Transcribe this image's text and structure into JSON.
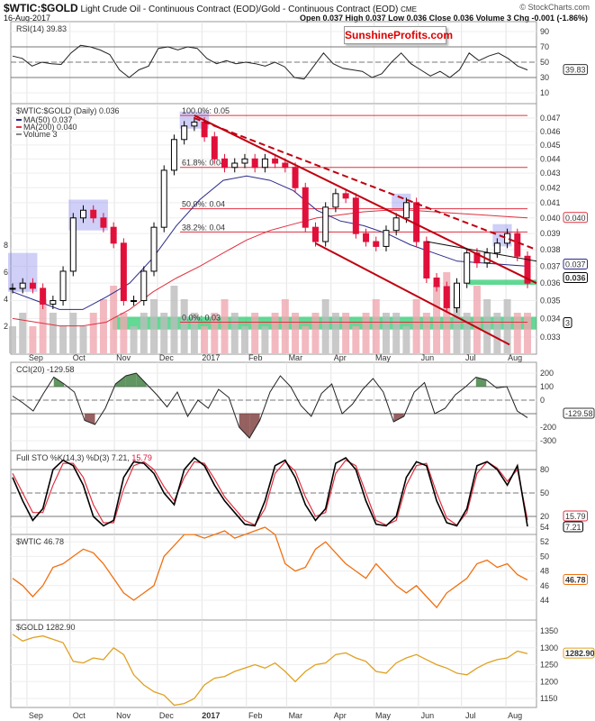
{
  "header": {
    "symbol": "$WTIC:$GOLD",
    "description": "Light Crude Oil - Continuous Contract (EOD)/Gold - Continuous Contract (EOD)",
    "exchange": "CME",
    "date": "16-Aug-2017",
    "copyright": "© StockCharts.com",
    "ohlc": "Open 0.037  High 0.037  Low 0.036  Close 0.036  Volume 3  Chg -0.001 (-1.86%)",
    "watermark": "SunshineProfits.com"
  },
  "colors": {
    "up": "#000000",
    "down": "#e0103a",
    "ma50": "#2a2a8a",
    "ma200": "#e03040",
    "support": "#2ecc71",
    "highlight": "#8888ee",
    "wtic": "#f07010",
    "gold": "#e0a020",
    "fib": "#e03040"
  },
  "chart_data": [
    {
      "panel": "rsi",
      "type": "line",
      "title": "RSI(14) 39.83",
      "last_label": "39.83",
      "ylim": [
        0,
        100
      ],
      "ticks": [
        "90",
        "70",
        "50",
        "30",
        "10"
      ],
      "tick_values": [
        90,
        70,
        50,
        30,
        10
      ],
      "levels": [
        70,
        50,
        30
      ],
      "values": [
        58,
        55,
        45,
        50,
        48,
        47,
        62,
        72,
        70,
        66,
        60,
        40,
        30,
        40,
        45,
        68,
        70,
        66,
        70,
        68,
        55,
        48,
        52,
        48,
        50,
        48,
        45,
        50,
        44,
        30,
        28,
        45,
        62,
        48,
        42,
        40,
        38,
        30,
        35,
        50,
        62,
        48,
        40,
        32,
        38,
        30,
        40,
        62,
        52,
        58,
        62,
        55,
        45,
        39.83
      ]
    },
    {
      "panel": "main",
      "type": "candlestick-close",
      "title": "$WTIC:$GOLD (Daily) 0.036",
      "scale": "log",
      "ylim": [
        0.0325,
        0.0485
      ],
      "ticks": [
        "0.047",
        "0.046",
        "0.045",
        "0.044",
        "0.043",
        "0.042",
        "0.041",
        "0.040",
        "0.039",
        "0.038",
        "0.037",
        "0.036",
        "0.035",
        "0.034",
        "0.033"
      ],
      "tick_values": [
        0.047,
        0.046,
        0.045,
        0.044,
        0.043,
        0.042,
        0.041,
        0.04,
        0.039,
        0.038,
        0.037,
        0.036,
        0.035,
        0.034,
        0.033
      ],
      "close": [
        0.0357,
        0.036,
        0.0357,
        0.0348,
        0.035,
        0.0367,
        0.04,
        0.0405,
        0.04,
        0.0394,
        0.0384,
        0.035,
        0.035,
        0.0367,
        0.0394,
        0.0432,
        0.0454,
        0.0464,
        0.0467,
        0.0456,
        0.044,
        0.0434,
        0.0437,
        0.044,
        0.0434,
        0.044,
        0.0437,
        0.0434,
        0.042,
        0.0394,
        0.0385,
        0.0407,
        0.0416,
        0.0413,
        0.039,
        0.0385,
        0.0382,
        0.0392,
        0.04,
        0.041,
        0.0385,
        0.0363,
        0.0358,
        0.0346,
        0.036,
        0.0378,
        0.0372,
        0.0378,
        0.0384,
        0.039,
        0.0376,
        0.036
      ],
      "legend": [
        {
          "label": "MA(50) 0.037",
          "color": "#2a2a8a"
        },
        {
          "label": "MA(200) 0.040",
          "color": "#e03040"
        },
        {
          "label": "Volume 3",
          "color": "#888888"
        }
      ],
      "ma50": [
        0.0355,
        0.035,
        0.0345,
        0.0345,
        0.0352,
        0.036,
        0.0375,
        0.0395,
        0.0412,
        0.0425,
        0.0428,
        0.0425,
        0.0418,
        0.0405,
        0.0398,
        0.0395,
        0.039,
        0.0383,
        0.0378,
        0.0373,
        0.0372,
        0.0371,
        0.037
      ],
      "ma200": [
        0.034,
        0.0338,
        0.0336,
        0.0336,
        0.0338,
        0.0345,
        0.0355,
        0.0363,
        0.037,
        0.0378,
        0.0386,
        0.0392,
        0.0396,
        0.04,
        0.0402,
        0.0404,
        0.0405,
        0.0405,
        0.0404,
        0.0403,
        0.0402,
        0.0401,
        0.04
      ],
      "last_labels": {
        "ma200": "0.040",
        "ma50": "0.037",
        "close": "0.036"
      },
      "volume_ticks": [
        "8",
        "6",
        "4",
        "2"
      ],
      "volume_tick_values": [
        8,
        6,
        4,
        2
      ],
      "volume_label": "3",
      "volume": [
        2,
        3,
        2,
        4,
        3,
        2,
        3,
        2,
        3,
        4,
        5,
        3,
        2,
        3,
        4,
        3,
        5,
        4,
        3,
        2,
        3,
        4,
        3,
        2,
        3,
        2,
        3,
        4,
        3,
        2,
        3,
        4,
        3,
        3,
        2,
        3,
        4,
        3,
        3,
        2,
        4,
        3,
        5,
        6,
        4,
        3,
        5,
        4,
        3,
        4,
        3,
        3
      ],
      "fib_levels": [
        {
          "label": "100.0%: 0.05",
          "value": 0.0472
        },
        {
          "label": "61.8%: 0.04",
          "value": 0.0434
        },
        {
          "label": "50.0%: 0.04",
          "value": 0.0406
        },
        {
          "label": "38.2%: 0.04",
          "value": 0.0391
        },
        {
          "label": "0.0%: 0.03",
          "value": 0.0338
        }
      ]
    },
    {
      "panel": "cci",
      "type": "line",
      "title": "CCI(20) -129.58",
      "last_label": "-129.58",
      "ylim": [
        -350,
        260
      ],
      "ticks": [
        "200",
        "100",
        "0",
        "-200",
        "-300"
      ],
      "tick_values": [
        200,
        100,
        0,
        -200,
        -300
      ],
      "levels": [
        100,
        0,
        -100
      ],
      "values": [
        30,
        -20,
        -80,
        50,
        170,
        120,
        60,
        -150,
        -180,
        -60,
        120,
        180,
        200,
        120,
        40,
        -50,
        60,
        -120,
        0,
        -60,
        80,
        20,
        -200,
        -280,
        -150,
        60,
        180,
        100,
        -40,
        -120,
        50,
        120,
        -100,
        -30,
        80,
        160,
        60,
        -160,
        -120,
        60,
        130,
        -100,
        -60,
        40,
        100,
        170,
        150,
        90,
        100,
        -80,
        -129.58
      ]
    },
    {
      "panel": "sto",
      "type": "line",
      "title": "Full STO %K(14,3) %D(3) 7.21, 15.79",
      "title_k": "Full STO %K(14,3) %D(3) 7.21,",
      "title_d": "15.79",
      "ylim": [
        0,
        100
      ],
      "ticks": [
        "80",
        "50",
        "20"
      ],
      "tick_values": [
        80,
        50,
        20
      ],
      "levels": [
        80,
        50,
        20
      ],
      "k": [
        70,
        40,
        15,
        30,
        80,
        92,
        85,
        60,
        20,
        8,
        15,
        70,
        90,
        88,
        75,
        50,
        35,
        80,
        95,
        85,
        60,
        40,
        25,
        10,
        8,
        40,
        85,
        92,
        70,
        35,
        15,
        30,
        88,
        95,
        80,
        40,
        10,
        8,
        20,
        70,
        90,
        85,
        40,
        12,
        8,
        30,
        85,
        90,
        80,
        60,
        85,
        7.21
      ],
      "d": [
        75,
        50,
        25,
        25,
        60,
        88,
        88,
        70,
        35,
        12,
        12,
        55,
        85,
        90,
        80,
        58,
        40,
        70,
        90,
        88,
        68,
        45,
        30,
        15,
        9,
        30,
        75,
        90,
        78,
        45,
        20,
        25,
        75,
        92,
        85,
        50,
        15,
        9,
        15,
        60,
        85,
        88,
        50,
        18,
        9,
        25,
        75,
        90,
        82,
        65,
        80,
        15.79
      ],
      "last_labels": {
        "d": "15.79",
        "k": "7.21"
      }
    },
    {
      "panel": "wtic",
      "type": "line",
      "title": "$WTIC 46.78",
      "last_label": "46.78",
      "ylim": [
        42.5,
        55.5
      ],
      "ticks": [
        "54",
        "52",
        "50",
        "48",
        "46",
        "44"
      ],
      "tick_values": [
        54,
        52,
        50,
        48,
        46,
        44
      ],
      "values": [
        47,
        46,
        44.5,
        46,
        48.5,
        49,
        50,
        51,
        50.5,
        49,
        47,
        45,
        44,
        45,
        46,
        50,
        51.5,
        53,
        53,
        52.5,
        53,
        53.5,
        52.5,
        53,
        53.5,
        54,
        53,
        49,
        48,
        48.5,
        51,
        52,
        50.5,
        49,
        48,
        47,
        49,
        47.5,
        46,
        45,
        46,
        44.5,
        43,
        45,
        46,
        47,
        49,
        49.5,
        48.5,
        49,
        47.5,
        46.78
      ]
    },
    {
      "panel": "gold",
      "type": "line",
      "title": "$GOLD 1282.90",
      "last_label": "1282.90",
      "ylim": [
        1120,
        1380
      ],
      "ticks": [
        "1350",
        "1300",
        "1250",
        "1200",
        "1150"
      ],
      "tick_values": [
        1350,
        1300,
        1250,
        1200,
        1150
      ],
      "values": [
        1340,
        1320,
        1330,
        1335,
        1325,
        1315,
        1260,
        1255,
        1270,
        1265,
        1300,
        1280,
        1220,
        1190,
        1170,
        1160,
        1130,
        1135,
        1150,
        1190,
        1210,
        1215,
        1230,
        1240,
        1250,
        1240,
        1255,
        1230,
        1200,
        1230,
        1250,
        1255,
        1280,
        1285,
        1270,
        1260,
        1230,
        1225,
        1255,
        1270,
        1280,
        1265,
        1250,
        1240,
        1225,
        1220,
        1240,
        1255,
        1265,
        1270,
        1290,
        1282.9
      ]
    }
  ],
  "x_axis": {
    "range": [
      "2016-08-22",
      "2017-08-16"
    ],
    "months": [
      {
        "label": "Sep",
        "date": "2016-09-01"
      },
      {
        "label": "Oct",
        "date": "2016-10-01"
      },
      {
        "label": "Nov",
        "date": "2016-11-01"
      },
      {
        "label": "Dec",
        "date": "2016-12-01"
      },
      {
        "label": "2017",
        "date": "2017-01-01",
        "bold": true
      },
      {
        "label": "Feb",
        "date": "2017-02-01"
      },
      {
        "label": "Mar",
        "date": "2017-03-01"
      },
      {
        "label": "Apr",
        "date": "2017-04-01"
      },
      {
        "label": "May",
        "date": "2017-05-01"
      },
      {
        "label": "Jun",
        "date": "2017-06-01"
      },
      {
        "label": "Jul",
        "date": "2017-07-01"
      },
      {
        "label": "Aug",
        "date": "2017-08-01"
      }
    ]
  }
}
